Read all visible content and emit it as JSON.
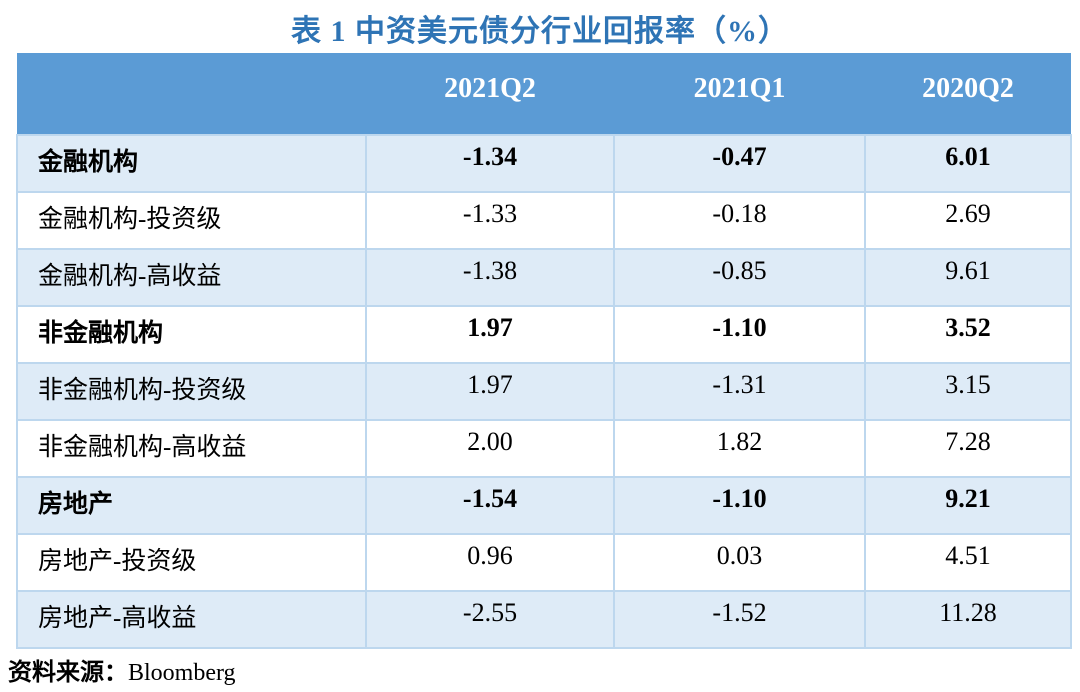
{
  "title": "表 1 中资美元债分行业回报率（%）",
  "source": {
    "label": "资料来源：",
    "value": "Bloomberg"
  },
  "colors": {
    "title_text": "#2E74B5",
    "header_bg": "#5B9BD5",
    "header_text": "#FFFFFF",
    "row_alt_bg": "#DEEBF7",
    "row_bg": "#FFFFFF",
    "border": "#BDD7EE",
    "body_text": "#000000"
  },
  "chart_data": {
    "type": "table",
    "title": "表 1 中资美元债分行业回报率（%）",
    "columns": [
      "",
      "2021Q2",
      "2021Q1",
      "2020Q2"
    ],
    "rows": [
      {
        "label": "金融机构",
        "values": [
          "-1.34",
          "-0.47",
          "6.01"
        ],
        "bold": true
      },
      {
        "label": "金融机构-投资级",
        "values": [
          "-1.33",
          "-0.18",
          "2.69"
        ],
        "bold": false
      },
      {
        "label": "金融机构-高收益",
        "values": [
          "-1.38",
          "-0.85",
          "9.61"
        ],
        "bold": false
      },
      {
        "label": "非金融机构",
        "values": [
          "1.97",
          "-1.10",
          "3.52"
        ],
        "bold": true
      },
      {
        "label": "非金融机构-投资级",
        "values": [
          "1.97",
          "-1.31",
          "3.15"
        ],
        "bold": false
      },
      {
        "label": "非金融机构-高收益",
        "values": [
          "2.00",
          "1.82",
          "7.28"
        ],
        "bold": false
      },
      {
        "label": "房地产",
        "values": [
          "-1.54",
          "-1.10",
          "9.21"
        ],
        "bold": true
      },
      {
        "label": "房地产-投资级",
        "values": [
          "0.96",
          "0.03",
          "4.51"
        ],
        "bold": false
      },
      {
        "label": "房地产-高收益",
        "values": [
          "-2.55",
          "-1.52",
          "11.28"
        ],
        "bold": false
      }
    ]
  }
}
